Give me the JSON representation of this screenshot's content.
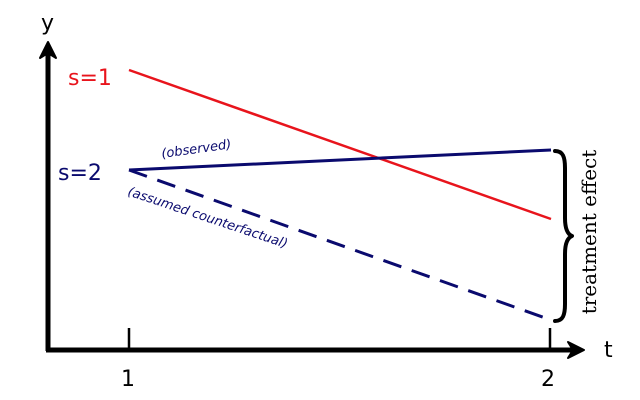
{
  "axes": {
    "y_label": "y",
    "x_label": "t",
    "ticks": [
      "1",
      "2"
    ]
  },
  "groups": {
    "s1": {
      "label": "s=1",
      "color": "#e8141c"
    },
    "s2": {
      "label": "s=2",
      "color": "#0a0a6e"
    }
  },
  "annotations": {
    "observed": "(observed)",
    "counterfactual": "(assumed counterfactual)",
    "effect": "treatment effect"
  },
  "chart_data": {
    "type": "line",
    "x": [
      1,
      2
    ],
    "series": [
      {
        "name": "s=1",
        "values": [
          3,
          1.6
        ],
        "style": "solid",
        "color": "#e8141c"
      },
      {
        "name": "s=2 (observed)",
        "values": [
          2,
          2.2
        ],
        "style": "solid",
        "color": "#0a0a6e"
      },
      {
        "name": "s=2 (assumed counterfactual)",
        "values": [
          2,
          0.3
        ],
        "style": "dashed",
        "color": "#0a0a6e"
      }
    ],
    "title": "",
    "xlabel": "t",
    "ylabel": "y",
    "grid": false
  }
}
